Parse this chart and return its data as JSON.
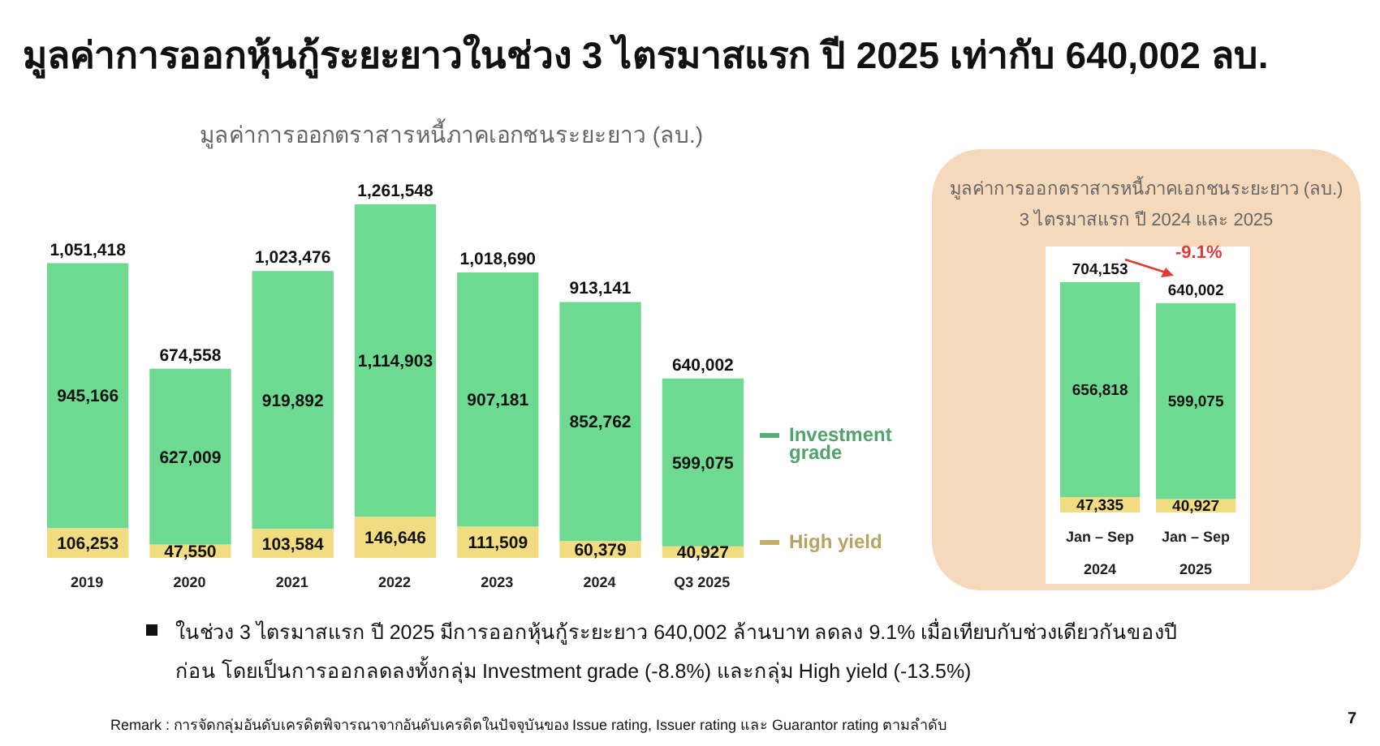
{
  "chart_data": [
    {
      "type": "bar",
      "title": "มูลค่าการออกหุ้นกู้ระยะยาวในช่วง 3 ไตรมาสแรก ปี 2025 เท่ากับ 640,002 ลบ.",
      "subtitle": "มูลค่าการออกตราสารหนี้ภาคเอกชนระยะยาว (ลบ.)",
      "categories": [
        "2019",
        "2020",
        "2021",
        "2022",
        "2023",
        "2024",
        "Q3 2025"
      ],
      "stacked": true,
      "legend": "right",
      "series": [
        {
          "name": "High yield",
          "color": "#f2dc82",
          "values": [
            106253,
            47550,
            103584,
            146646,
            111509,
            60379,
            40927
          ],
          "value_labels": [
            "106,253",
            "47,550",
            "103,584",
            "146,646",
            "111,509",
            "60,379",
            "40,927"
          ]
        },
        {
          "name": "Investment grade",
          "color": "#6dd991",
          "values": [
            945166,
            627009,
            919892,
            1114903,
            907181,
            852762,
            599075
          ],
          "value_labels": [
            "945,166",
            "627,009",
            "919,892",
            "1,114,903",
            "907,181",
            "852,762",
            "599,075"
          ]
        }
      ],
      "totals": [
        "1,051,418",
        "674,558",
        "1,023,476",
        "1,261,548",
        "1,018,690",
        "913,141",
        "640,002"
      ],
      "annotations": [
        "ในช่วง 3 ไตรมาสแรก ปี 2025 มีการออกหุ้นกู้ระยะยาว 640,002 ล้านบาท ลดลง 9.1% เมื่อเทียบกับช่วงเดียวกันของปีก่อน โดยเป็นการออกลดลงทั้งกลุ่ม Investment grade (-8.8%) และกลุ่ม High yield (-13.5%)",
        "Remark : การจัดกลุ่มอันดับเครดิตพิจารณาจากอันดับเครดิตในปัจจุบันของ Issue rating, Issuer rating และ Guarantor rating ตามลำดับ",
        "7"
      ]
    },
    {
      "type": "bar",
      "title": "มูลค่าการออกตราสารหนี้ภาคเอกชนระยะยาว (ลบ.)",
      "subtitle": "3 ไตรมาสแรก ปี 2024 และ 2025",
      "categories": [
        "Jan – Sep\n2024",
        "Jan – Sep\n2025"
      ],
      "stacked": true,
      "series": [
        {
          "color": "#f2dc82",
          "values": [
            47335,
            40927
          ],
          "value_labels": [
            "47,335",
            "40,927"
          ]
        },
        {
          "color": "#6dd991",
          "values": [
            656818,
            599075
          ],
          "value_labels": [
            "656,818",
            "599,075"
          ]
        }
      ],
      "totals": [
        "704,153",
        "640,002"
      ],
      "annotations": [
        "-9.1%"
      ]
    }
  ]
}
